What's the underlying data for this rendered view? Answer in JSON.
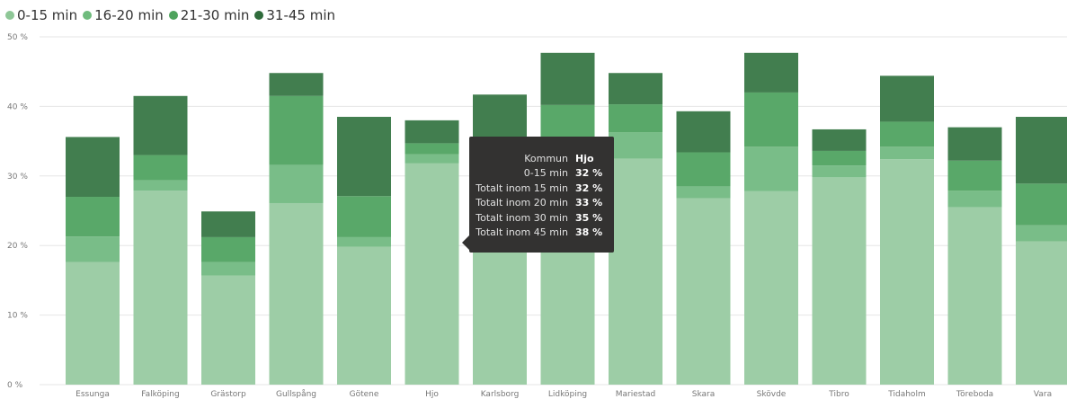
{
  "colors": {
    "s0": "#9dcda6",
    "s1": "#79bd88",
    "s2": "#59a869",
    "s3": "#427e4f",
    "grid": "#e6e6e6",
    "axis_text": "#777777"
  },
  "legend": [
    {
      "label": "0-15 min",
      "color": "#8ec797"
    },
    {
      "label": "16-20 min",
      "color": "#6fbb7d"
    },
    {
      "label": "21-30 min",
      "color": "#4ea35c"
    },
    {
      "label": "31-45 min",
      "color": "#2f6b3b"
    }
  ],
  "tooltip": {
    "rows": [
      {
        "label": "Kommun",
        "value": "Hjo"
      },
      {
        "label": "0-15 min",
        "value": "32 %"
      },
      {
        "label": "Totalt inom 15 min",
        "value": "32 %"
      },
      {
        "label": "Totalt inom 20 min",
        "value": "33 %"
      },
      {
        "label": "Totalt inom 30 min",
        "value": "35 %"
      },
      {
        "label": "Totalt inom 45 min",
        "value": "38 %"
      }
    ]
  },
  "chart_data": {
    "type": "bar",
    "stacked": true,
    "categories": [
      "Essunga",
      "Falköping",
      "Grästorp",
      "Gullspång",
      "Götene",
      "Hjo",
      "Karlsborg",
      "Lidköping",
      "Mariestad",
      "Skara",
      "Skövde",
      "Tibro",
      "Tidaholm",
      "Töreboda",
      "Vara"
    ],
    "series": [
      {
        "name": "0-15 min",
        "values": [
          17.6,
          27.9,
          15.7,
          26.1,
          19.8,
          31.8,
          21.0,
          28.8,
          32.5,
          26.8,
          27.8,
          29.8,
          32.4,
          25.5,
          20.6
        ]
      },
      {
        "name": "16-20 min",
        "values": [
          3.7,
          1.5,
          1.9,
          5.5,
          1.4,
          1.3,
          2.2,
          3.5,
          3.8,
          1.7,
          6.4,
          1.7,
          1.8,
          2.4,
          2.3
        ]
      },
      {
        "name": "21-30 min",
        "values": [
          5.7,
          3.6,
          3.6,
          9.9,
          5.9,
          1.6,
          3.5,
          7.9,
          4.0,
          4.9,
          7.8,
          2.1,
          3.6,
          4.3,
          6.0
        ]
      },
      {
        "name": "31-45 min",
        "values": [
          8.6,
          8.5,
          3.7,
          3.3,
          11.4,
          3.3,
          15.0,
          7.5,
          4.5,
          5.9,
          5.7,
          3.1,
          6.6,
          4.8,
          9.6
        ]
      }
    ],
    "yticks": [
      "0 %",
      "10 %",
      "20 %",
      "30 %",
      "40 %",
      "50 %"
    ],
    "ylim": [
      0,
      50
    ],
    "grid": true,
    "legend_position": "top-left"
  }
}
